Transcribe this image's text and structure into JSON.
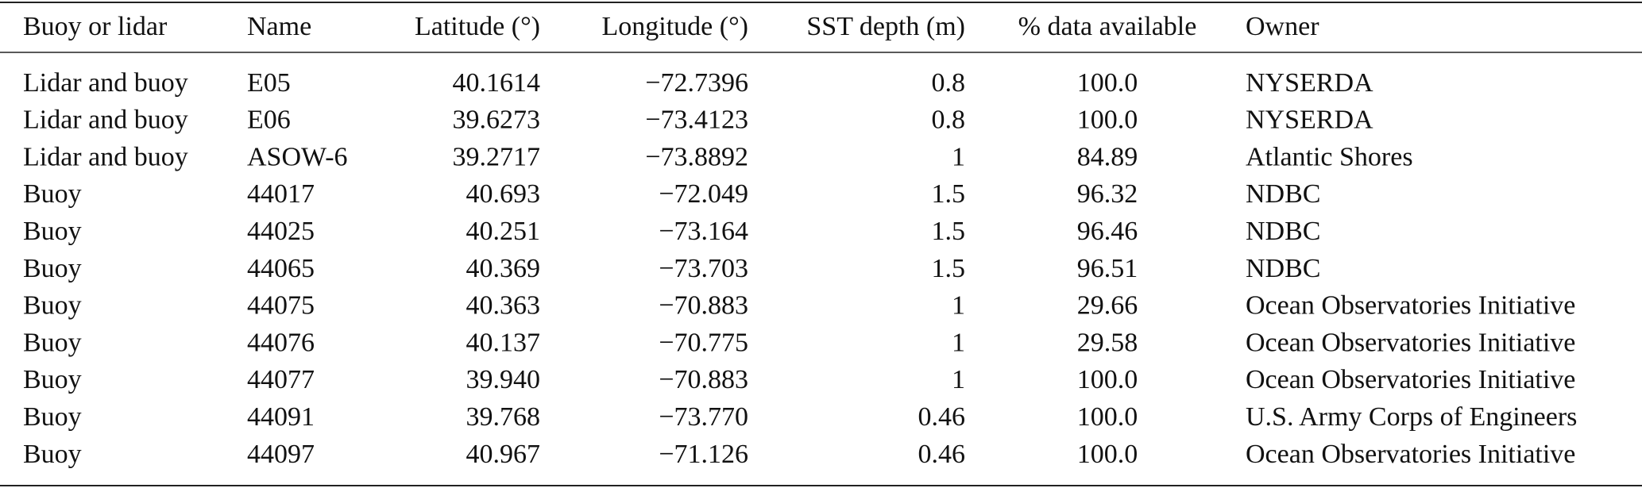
{
  "table": {
    "header": [
      "Buoy or lidar",
      "Name",
      "Latitude (°)",
      "Longitude (°)",
      "SST depth (m)",
      "% data available",
      "Owner"
    ],
    "rows": [
      [
        "Lidar and buoy",
        "E05",
        "40.1614",
        "−72.7396",
        "0.8",
        "100.0",
        "NYSERDA"
      ],
      [
        "Lidar and buoy",
        "E06",
        "39.6273",
        "−73.4123",
        "0.8",
        "100.0",
        "NYSERDA"
      ],
      [
        "Lidar and buoy",
        "ASOW-6",
        "39.2717",
        "−73.8892",
        "1",
        "84.89",
        "Atlantic Shores"
      ],
      [
        "Buoy",
        "44017",
        "40.693",
        "−72.049",
        "1.5",
        "96.32",
        "NDBC"
      ],
      [
        "Buoy",
        "44025",
        "40.251",
        "−73.164",
        "1.5",
        "96.46",
        "NDBC"
      ],
      [
        "Buoy",
        "44065",
        "40.369",
        "−73.703",
        "1.5",
        "96.51",
        "NDBC"
      ],
      [
        "Buoy",
        "44075",
        "40.363",
        "−70.883",
        "1",
        "29.66",
        "Ocean Observatories Initiative"
      ],
      [
        "Buoy",
        "44076",
        "40.137",
        "−70.775",
        "1",
        "29.58",
        "Ocean Observatories Initiative"
      ],
      [
        "Buoy",
        "44077",
        "39.940",
        "−70.883",
        "1",
        "100.0",
        "Ocean Observatories Initiative"
      ],
      [
        "Buoy",
        "44091",
        "39.768",
        "−73.770",
        "0.46",
        "100.0",
        "U.S. Army Corps of Engineers"
      ],
      [
        "Buoy",
        "44097",
        "40.967",
        "−71.126",
        "0.46",
        "100.0",
        "Ocean Observatories Initiative"
      ]
    ]
  }
}
